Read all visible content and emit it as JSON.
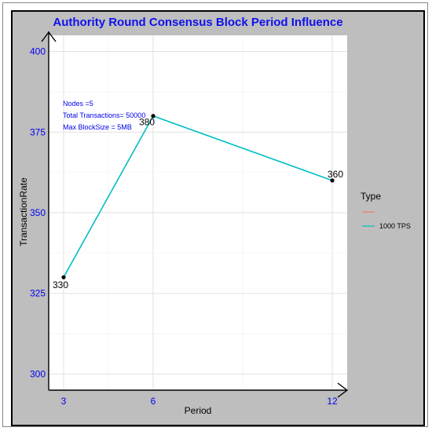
{
  "chart_data": {
    "type": "line",
    "title": "Authority Round Consensus Block Period Influence",
    "xlabel": "Period",
    "ylabel": "TransactionRate",
    "x": [
      3,
      6,
      12
    ],
    "xticks": [
      "3",
      "6",
      "12"
    ],
    "yticks": [
      "300",
      "325",
      "350",
      "375",
      "400"
    ],
    "ylim": [
      295,
      405
    ],
    "xlim": [
      2.5,
      12.5
    ],
    "grid": true,
    "legend_position": "right",
    "legend_title": "Type",
    "legend_entries": [
      {
        "name": "",
        "color": "#f8766d"
      },
      {
        "name": "1000 TPS",
        "color": "#00bfc4"
      }
    ],
    "series": [
      {
        "name": "1000 TPS",
        "color": "#00bfc4",
        "values": [
          330,
          380,
          360
        ],
        "labels": [
          "330",
          "380",
          "360"
        ]
      }
    ],
    "annotations": [
      "Nodes =5",
      "Total Transactions= 50000",
      "Max BlockSize = 5MB"
    ]
  }
}
